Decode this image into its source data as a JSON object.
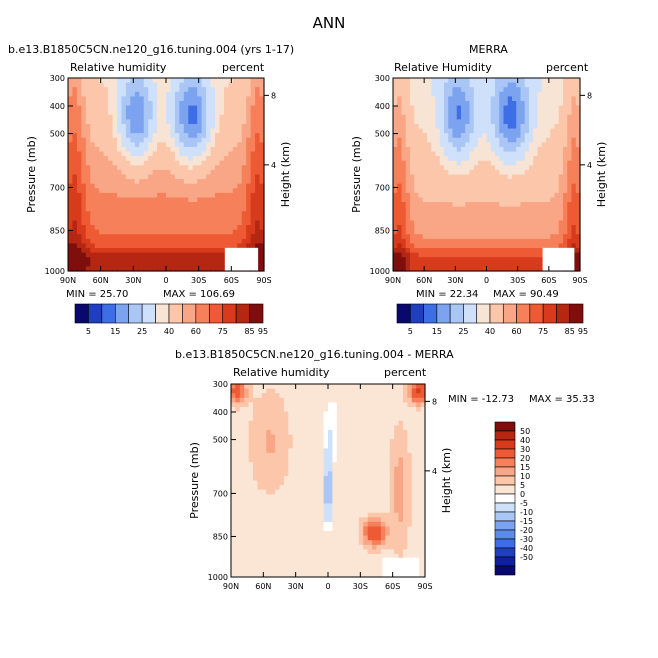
{
  "main_title": "ANN",
  "colors": {
    "rh_scale": [
      "#08086e",
      "#1f3fc0",
      "#3e6ee5",
      "#7ca3f0",
      "#a9c6f5",
      "#cfe0fb",
      "#f8e4d4",
      "#fbc6aa",
      "#f8a685",
      "#f5805a",
      "#ed5a33",
      "#d83a1c",
      "#b52712",
      "#7e0f0c"
    ],
    "diff_scale": [
      "#08086e",
      "#0e1fa0",
      "#1f3fc0",
      "#3e6ee5",
      "#5b8bea",
      "#7ca3f0",
      "#a9c6f5",
      "#cfe0fb",
      "#ffffff",
      "#fbe6d6",
      "#fbc6aa",
      "#f8a685",
      "#f5805a",
      "#ed5a33",
      "#d83a1c",
      "#b52712",
      "#7e0f0c"
    ]
  },
  "chart_data": [
    {
      "type": "heatmap",
      "title": "b.e13.B1850C5CN.ne120_g16.tuning.004 (yrs 1-17)",
      "subtitle_left": "Relative humidity",
      "subtitle_right": "percent",
      "ylabel": "Pressure (mb)",
      "ylabel_right": "Height (km)",
      "x_ticks": [
        "90N",
        "60N",
        "30N",
        "0",
        "30S",
        "60S",
        "90S"
      ],
      "y_ticks": [
        "300",
        "400",
        "500",
        "700",
        "850",
        "1000"
      ],
      "height_ticks": [
        "8",
        "4"
      ],
      "min_label": "MIN =   25.70",
      "max_label": "MAX =  106.69",
      "colorbar_labels": [
        "5",
        "15",
        "25",
        "40",
        "60",
        "75",
        "85",
        "95"
      ]
    },
    {
      "type": "heatmap",
      "title": "MERRA",
      "subtitle_left": "Relative Humidity",
      "subtitle_right": "percent",
      "ylabel": "Pressure (mb)",
      "ylabel_right": "Height (km)",
      "x_ticks": [
        "90N",
        "60N",
        "30N",
        "0",
        "30S",
        "60S",
        "90S"
      ],
      "y_ticks": [
        "300",
        "400",
        "500",
        "700",
        "850",
        "1000"
      ],
      "height_ticks": [
        "8",
        "4"
      ],
      "min_label": "MIN =   22.34",
      "max_label": "MAX =   90.49",
      "colorbar_labels": [
        "5",
        "15",
        "25",
        "40",
        "60",
        "75",
        "85",
        "95"
      ]
    },
    {
      "type": "heatmap",
      "title": "b.e13.B1850C5CN.ne120_g16.tuning.004 - MERRA",
      "subtitle_left": "Relative humidity",
      "subtitle_right": "percent",
      "ylabel": "Pressure (mb)",
      "ylabel_right": "Height (km)",
      "x_ticks": [
        "90N",
        "60N",
        "30N",
        "0",
        "30S",
        "60S",
        "90S"
      ],
      "y_ticks": [
        "300",
        "400",
        "500",
        "700",
        "850",
        "1000"
      ],
      "height_ticks": [
        "8",
        "4"
      ],
      "min_label": "MIN =  -12.73",
      "max_label": "MAX =   35.33",
      "colorbar_labels": [
        "50",
        "40",
        "30",
        "20",
        "15",
        "10",
        "5",
        "0",
        "-5",
        "-10",
        "-15",
        "-20",
        "-30",
        "-40",
        "-50"
      ]
    }
  ]
}
